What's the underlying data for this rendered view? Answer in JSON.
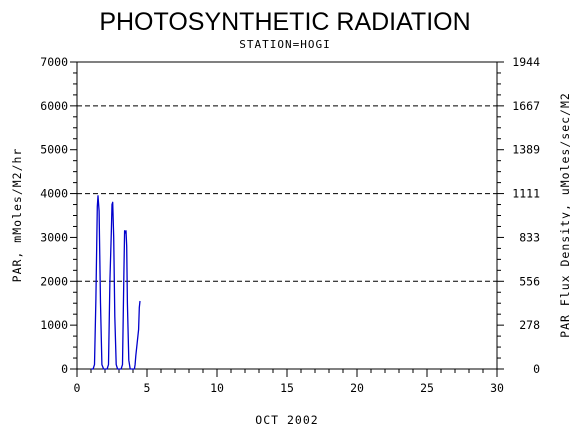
{
  "chart_data": {
    "type": "line",
    "title": "PHOTOSYNTHETIC RADIATION",
    "subtitle": "STATION=HOGI",
    "xlabel": "OCT 2002",
    "ylabel": "PAR, mMoles/M2/hr",
    "y2label": "PAR Flux Density, uMoles/sec/M2",
    "xlim": [
      0,
      30
    ],
    "ylim": [
      0,
      7000
    ],
    "x_ticks": [
      "0",
      "5",
      "10",
      "15",
      "20",
      "25",
      "30"
    ],
    "y_ticks": [
      "0",
      "1000",
      "2000",
      "3000",
      "4000",
      "5000",
      "6000",
      "7000"
    ],
    "y2_ticks": [
      "0",
      "278",
      "556",
      "833",
      "1111",
      "1389",
      "1667",
      "1944"
    ],
    "grid": "dashed horizontal lines at 2000, 4000, 6000",
    "series_color": "#0000cc",
    "series": [
      {
        "x": [
          1.0,
          1.15,
          1.25,
          1.35,
          1.45,
          1.5,
          1.58,
          1.68,
          1.78,
          1.9,
          2.0,
          2.1,
          2.15,
          2.25,
          2.35,
          2.45,
          2.5,
          2.55,
          2.62,
          2.7,
          2.8,
          2.9,
          3.0,
          3.1,
          3.15,
          3.25,
          3.35,
          3.4,
          3.45,
          3.5,
          3.55,
          3.6,
          3.7,
          3.8,
          3.9,
          4.0,
          4.1,
          4.15,
          4.2,
          4.3,
          4.4,
          4.45,
          4.5
        ],
        "y": [
          0,
          0,
          100,
          1600,
          3700,
          3950,
          3600,
          1500,
          100,
          0,
          0,
          0,
          0,
          100,
          2000,
          3100,
          3750,
          3800,
          3000,
          1200,
          100,
          0,
          0,
          0,
          0,
          100,
          2200,
          3150,
          3100,
          3150,
          2800,
          1500,
          200,
          0,
          0,
          0,
          0,
          100,
          300,
          600,
          900,
          1400,
          1550
        ]
      }
    ]
  }
}
